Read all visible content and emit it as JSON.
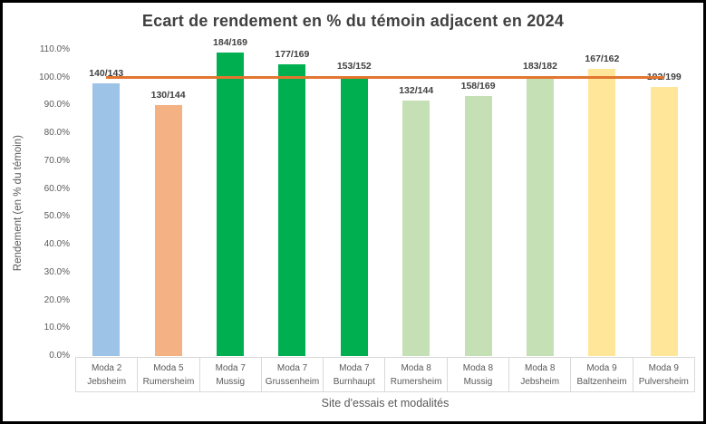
{
  "chart_data": {
    "type": "bar",
    "title": "Ecart de rendement en % du témoin adjacent en 2024",
    "xlabel": "Site d'essais et modalités",
    "ylabel": "Rendement (en % du témoin)",
    "ylim": [
      0,
      110
    ],
    "grid": false,
    "legend": false,
    "ytick_values": [
      0,
      10,
      20,
      30,
      40,
      50,
      60,
      70,
      80,
      90,
      100,
      110
    ],
    "ytick_labels": [
      "0.0%",
      "10.0%",
      "20.0%",
      "30.0%",
      "40.0%",
      "50.0%",
      "60.0%",
      "70.0%",
      "80.0%",
      "90.0%",
      "100.0%",
      "110.0%"
    ],
    "reference_line": {
      "value": 100,
      "color": "#E2762F"
    },
    "bars": [
      {
        "modality": "Moda 2",
        "site": "Jebsheim",
        "data_label": "140/143",
        "value_pct": 97.9,
        "color": "#9DC3E6"
      },
      {
        "modality": "Moda 5",
        "site": "Rumersheim",
        "data_label": "130/144",
        "value_pct": 90.3,
        "color": "#F4B183"
      },
      {
        "modality": "Moda 7",
        "site": "Mussig",
        "data_label": "184/169",
        "value_pct": 108.9,
        "color": "#00B050"
      },
      {
        "modality": "Moda 7",
        "site": "Grussenheim",
        "data_label": "177/169",
        "value_pct": 104.7,
        "color": "#00B050"
      },
      {
        "modality": "Moda 7",
        "site": "Burnhaupt",
        "data_label": "153/152",
        "value_pct": 100.7,
        "color": "#00B050"
      },
      {
        "modality": "Moda 8",
        "site": "Rumersheim",
        "data_label": "132/144",
        "value_pct": 91.7,
        "color": "#C5E0B4"
      },
      {
        "modality": "Moda 8",
        "site": "Mussig",
        "data_label": "158/169",
        "value_pct": 93.5,
        "color": "#C5E0B4"
      },
      {
        "modality": "Moda 8",
        "site": "Jebsheim",
        "data_label": "183/182",
        "value_pct": 100.5,
        "color": "#C5E0B4"
      },
      {
        "modality": "Moda 9",
        "site": "Baltzenheim",
        "data_label": "167/162",
        "value_pct": 103.1,
        "color": "#FFE699"
      },
      {
        "modality": "Moda 9",
        "site": "Pulversheim",
        "data_label": "192/199",
        "value_pct": 96.5,
        "color": "#FFE699"
      }
    ]
  }
}
